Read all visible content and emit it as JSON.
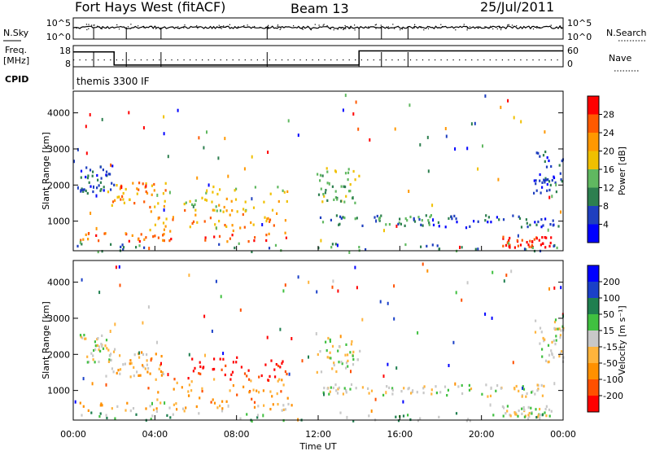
{
  "header": {
    "site": "Fort Hays West (fitACF)",
    "beam": "Beam 13",
    "date": "25/Jul/2011"
  },
  "top_panels": {
    "nsky_label": "N.Sky",
    "nsky_ticks": [
      "10^5",
      "10^0"
    ],
    "nsearch_label": "N.Search",
    "nsearch_ticks": [
      "10^5",
      "10^0"
    ],
    "freq_label_1": "Freq.",
    "freq_label_2": "[MHz]",
    "freq_ticks": [
      "18",
      "8"
    ],
    "nave_label": "Nave",
    "nave_ticks": [
      "60",
      "0"
    ],
    "cpid_label": "CPID",
    "cpid_text": "themis 3300 IF"
  },
  "chart_data": [
    {
      "type": "heatmap",
      "name": "power",
      "ylabel": "Slant Range [km]",
      "xlabel": "Time UT",
      "xlim_hours": [
        0,
        24
      ],
      "ylim_km": [
        180,
        4600
      ],
      "yticks": [
        "4000",
        "3000",
        "2000",
        "1000"
      ],
      "colorbar": {
        "label": "Power [dB]",
        "ticks": [
          "28",
          "24",
          "20",
          "16",
          "12",
          "8",
          "4"
        ],
        "colors": [
          "#0000ff",
          "#1f3fbf",
          "#2d7f4f",
          "#60b860",
          "#f0c000",
          "#ff9800",
          "#ff5a00",
          "#ff0000"
        ]
      },
      "features": [
        {
          "t0": 0.3,
          "t1": 10.7,
          "r0": 450,
          "r1": 700,
          "level": 6
        },
        {
          "t0": 3.6,
          "t1": 10.5,
          "r0": 700,
          "r1": 1350,
          "level": 5
        },
        {
          "t0": 5.4,
          "t1": 10.7,
          "r0": 1300,
          "r1": 2000,
          "level": 4
        },
        {
          "t0": 1.5,
          "t1": 4.6,
          "r0": 1400,
          "r1": 2100,
          "level": 5
        },
        {
          "t0": 0.3,
          "t1": 2.0,
          "r0": 1800,
          "r1": 2600,
          "level": 1
        },
        {
          "t0": 11.9,
          "t1": 14.0,
          "r0": 1500,
          "r1": 2500,
          "level": 3
        },
        {
          "t0": 12.0,
          "t1": 17.6,
          "r0": 900,
          "r1": 1200,
          "level": 2
        },
        {
          "t0": 17.5,
          "t1": 24.0,
          "r0": 850,
          "r1": 1200,
          "level": 1
        },
        {
          "t0": 21.0,
          "t1": 23.4,
          "r0": 300,
          "r1": 600,
          "level": 7
        },
        {
          "t0": 22.5,
          "t1": 24.0,
          "r0": 1800,
          "r1": 3000,
          "level": 1
        },
        {
          "t0": 0.0,
          "t1": 24.0,
          "r0": 180,
          "r1": 420,
          "level": 2
        }
      ]
    },
    {
      "type": "heatmap",
      "name": "velocity",
      "ylabel": "Slant Range [km]",
      "xlabel": "Time UT",
      "xlim_hours": [
        0,
        24
      ],
      "ylim_km": [
        180,
        4600
      ],
      "yticks": [
        "4000",
        "3000",
        "2000",
        "1000"
      ],
      "xticks": [
        "00:00",
        "04:00",
        "08:00",
        "12:00",
        "16:00",
        "20:00",
        "00:00"
      ],
      "colorbar": {
        "label": "Velocity [m s⁻¹]",
        "ticks": [
          "200",
          "100",
          "50",
          "15",
          "-15",
          "-50",
          "-100",
          "-200"
        ],
        "colors": [
          "#ff0000",
          "#ff5000",
          "#ff9000",
          "#ffb43c",
          "#c8c8c8",
          "#40c040",
          "#1f7f4f",
          "#1a40c8",
          "#0000ff"
        ]
      },
      "features": [
        {
          "t0": 0.3,
          "t1": 10.7,
          "r0": 450,
          "r1": 700,
          "level": 3
        },
        {
          "t0": 3.6,
          "t1": 10.5,
          "r0": 700,
          "r1": 1350,
          "level": 2
        },
        {
          "t0": 5.4,
          "t1": 10.7,
          "r0": 1300,
          "r1": 2000,
          "level": 0
        },
        {
          "t0": 1.5,
          "t1": 4.6,
          "r0": 1400,
          "r1": 2100,
          "level": 3
        },
        {
          "t0": 0.3,
          "t1": 2.0,
          "r0": 1800,
          "r1": 2600,
          "level": 4
        },
        {
          "t0": 11.9,
          "t1": 14.0,
          "r0": 1500,
          "r1": 2500,
          "level": 4
        },
        {
          "t0": 12.0,
          "t1": 17.6,
          "r0": 900,
          "r1": 1200,
          "level": 4
        },
        {
          "t0": 17.5,
          "t1": 24.0,
          "r0": 850,
          "r1": 1200,
          "level": 4
        },
        {
          "t0": 21.0,
          "t1": 23.4,
          "r0": 300,
          "r1": 600,
          "level": 4
        },
        {
          "t0": 22.5,
          "t1": 24.0,
          "r0": 1800,
          "r1": 3000,
          "level": 4
        },
        {
          "t0": 0.0,
          "t1": 24.0,
          "r0": 180,
          "r1": 420,
          "level": 5
        }
      ]
    }
  ],
  "nsky_level": 0.55,
  "freq_steps": [
    {
      "t0": 0.0,
      "t1": 2.0,
      "level": 0.7
    },
    {
      "t0": 2.0,
      "t1": 14.0,
      "level": 0.08
    },
    {
      "t0": 14.0,
      "t1": 24.0,
      "level": 0.75
    }
  ],
  "scan_marks_hours": [
    0.0,
    1.0,
    2.6,
    4.3,
    9.5,
    14.0,
    15.1,
    16.4
  ]
}
